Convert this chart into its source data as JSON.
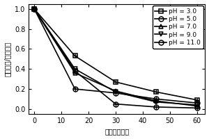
{
  "title": "",
  "xlabel": "时间（分钟）",
  "ylabel": "实时浓度/初始浓度",
  "xlim": [
    -2,
    63
  ],
  "ylim": [
    -0.05,
    1.05
  ],
  "xticks": [
    0,
    10,
    20,
    30,
    40,
    50,
    60
  ],
  "yticks": [
    0.0,
    0.2,
    0.4,
    0.6,
    0.8,
    1.0
  ],
  "series": [
    {
      "label": "pH = 3.0",
      "x": [
        0,
        15,
        30,
        45,
        60
      ],
      "y": [
        1.0,
        0.53,
        0.27,
        0.17,
        0.09
      ],
      "marker": "s",
      "color": "#000000",
      "linewidth": 1.2,
      "markersize": 5,
      "cross": true
    },
    {
      "label": "pH = 5.0",
      "x": [
        0,
        15,
        30,
        45,
        60
      ],
      "y": [
        1.0,
        0.38,
        0.05,
        0.02,
        0.01
      ],
      "marker": "o",
      "color": "#000000",
      "linewidth": 1.2,
      "markersize": 5,
      "cross": true
    },
    {
      "label": "pH = 7.0",
      "x": [
        0,
        15,
        30,
        45,
        60
      ],
      "y": [
        1.0,
        0.36,
        0.18,
        0.08,
        0.03
      ],
      "marker": "^",
      "color": "#000000",
      "linewidth": 1.2,
      "markersize": 5,
      "hbar": true
    },
    {
      "label": "pH = 9.0",
      "x": [
        0,
        15,
        30,
        45,
        60
      ],
      "y": [
        1.0,
        0.4,
        0.17,
        0.07,
        0.04
      ],
      "marker": "v",
      "color": "#000000",
      "linewidth": 1.2,
      "markersize": 5,
      "hbar": true
    },
    {
      "label": "pH = 11.0",
      "x": [
        0,
        15,
        30,
        45,
        60
      ],
      "y": [
        1.0,
        0.2,
        0.16,
        0.1,
        0.06
      ],
      "marker": "o",
      "color": "#000000",
      "linewidth": 1.2,
      "markersize": 5,
      "cross": true
    }
  ],
  "legend_loc": "upper right",
  "background_color": "#ffffff",
  "font_size": 6.5,
  "tick_font_size": 7,
  "label_font_size": 7
}
